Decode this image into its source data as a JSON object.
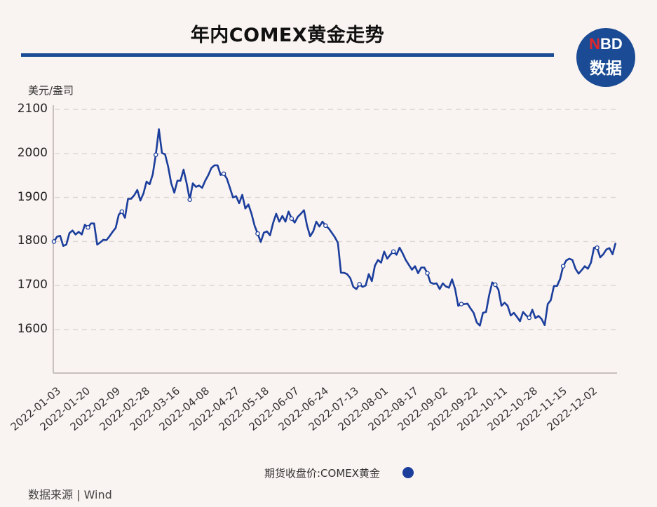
{
  "header": {
    "title": "年内COMEX黄金走势",
    "logo_top": "NBD",
    "logo_top_accent": "N",
    "logo_top_rest": "BD",
    "logo_bottom": "数据"
  },
  "footer": {
    "source": "数据来源 | Wind",
    "legend_label": "期货收盘价:COMEX黄金"
  },
  "colors": {
    "line": "#1b3e9c",
    "title_rule": "#1b4b94",
    "background": "#f9f3f1",
    "logo_accent": "#e0262c"
  },
  "chart_data": {
    "type": "line",
    "title": "年内COMEX黄金走势",
    "xlabel": "",
    "ylabel": "美元/盎司",
    "ylim": [
      1500,
      2100
    ],
    "yticks": [
      2100,
      2000,
      1900,
      1800,
      1700,
      1600
    ],
    "grid": true,
    "legend_position": "bottom",
    "xtick_labels": [
      "2022-01-03",
      "2022-01-20",
      "2022-02-09",
      "2022-02-28",
      "2022-03-16",
      "2022-04-08",
      "2022-04-27",
      "2022-05-18",
      "2022-06-07",
      "2022-06-24",
      "2022-07-13",
      "2022-08-01",
      "2022-08-17",
      "2022-09-02",
      "2022-09-22",
      "2022-10-11",
      "2022-10-28",
      "2022-11-15",
      "2022-12-02"
    ],
    "series": [
      {
        "name": "期货收盘价:COMEX黄金",
        "x_start": "2022-01-03",
        "values": [
          1800,
          1811,
          1813,
          1790,
          1793,
          1819,
          1825,
          1816,
          1822,
          1816,
          1838,
          1832,
          1841,
          1841,
          1793,
          1798,
          1804,
          1803,
          1812,
          1822,
          1831,
          1861,
          1868,
          1854,
          1897,
          1897,
          1905,
          1917,
          1893,
          1909,
          1936,
          1930,
          1952,
          1997,
          2055,
          2001,
          1998,
          1970,
          1932,
          1911,
          1938,
          1938,
          1963,
          1932,
          1895,
          1932,
          1924,
          1927,
          1922,
          1938,
          1951,
          1967,
          1973,
          1973,
          1951,
          1954,
          1943,
          1922,
          1900,
          1903,
          1887,
          1906,
          1875,
          1884,
          1863,
          1836,
          1818,
          1799,
          1820,
          1823,
          1814,
          1842,
          1863,
          1845,
          1858,
          1845,
          1868,
          1852,
          1843,
          1856,
          1863,
          1871,
          1836,
          1812,
          1823,
          1845,
          1834,
          1845,
          1836,
          1830,
          1820,
          1810,
          1797,
          1729,
          1729,
          1726,
          1717,
          1697,
          1692,
          1703,
          1697,
          1700,
          1726,
          1710,
          1745,
          1758,
          1752,
          1777,
          1761,
          1770,
          1777,
          1770,
          1786,
          1773,
          1758,
          1747,
          1736,
          1744,
          1728,
          1741,
          1741,
          1728,
          1707,
          1704,
          1705,
          1692,
          1705,
          1698,
          1695,
          1714,
          1692,
          1654,
          1658,
          1658,
          1659,
          1648,
          1638,
          1616,
          1609,
          1638,
          1640,
          1678,
          1707,
          1702,
          1691,
          1654,
          1661,
          1654,
          1632,
          1638,
          1629,
          1619,
          1640,
          1632,
          1627,
          1645,
          1626,
          1631,
          1624,
          1610,
          1658,
          1667,
          1699,
          1699,
          1715,
          1744,
          1757,
          1761,
          1758,
          1738,
          1727,
          1735,
          1744,
          1738,
          1752,
          1786,
          1786,
          1764,
          1771,
          1782,
          1785,
          1771,
          1797
        ]
      }
    ]
  }
}
